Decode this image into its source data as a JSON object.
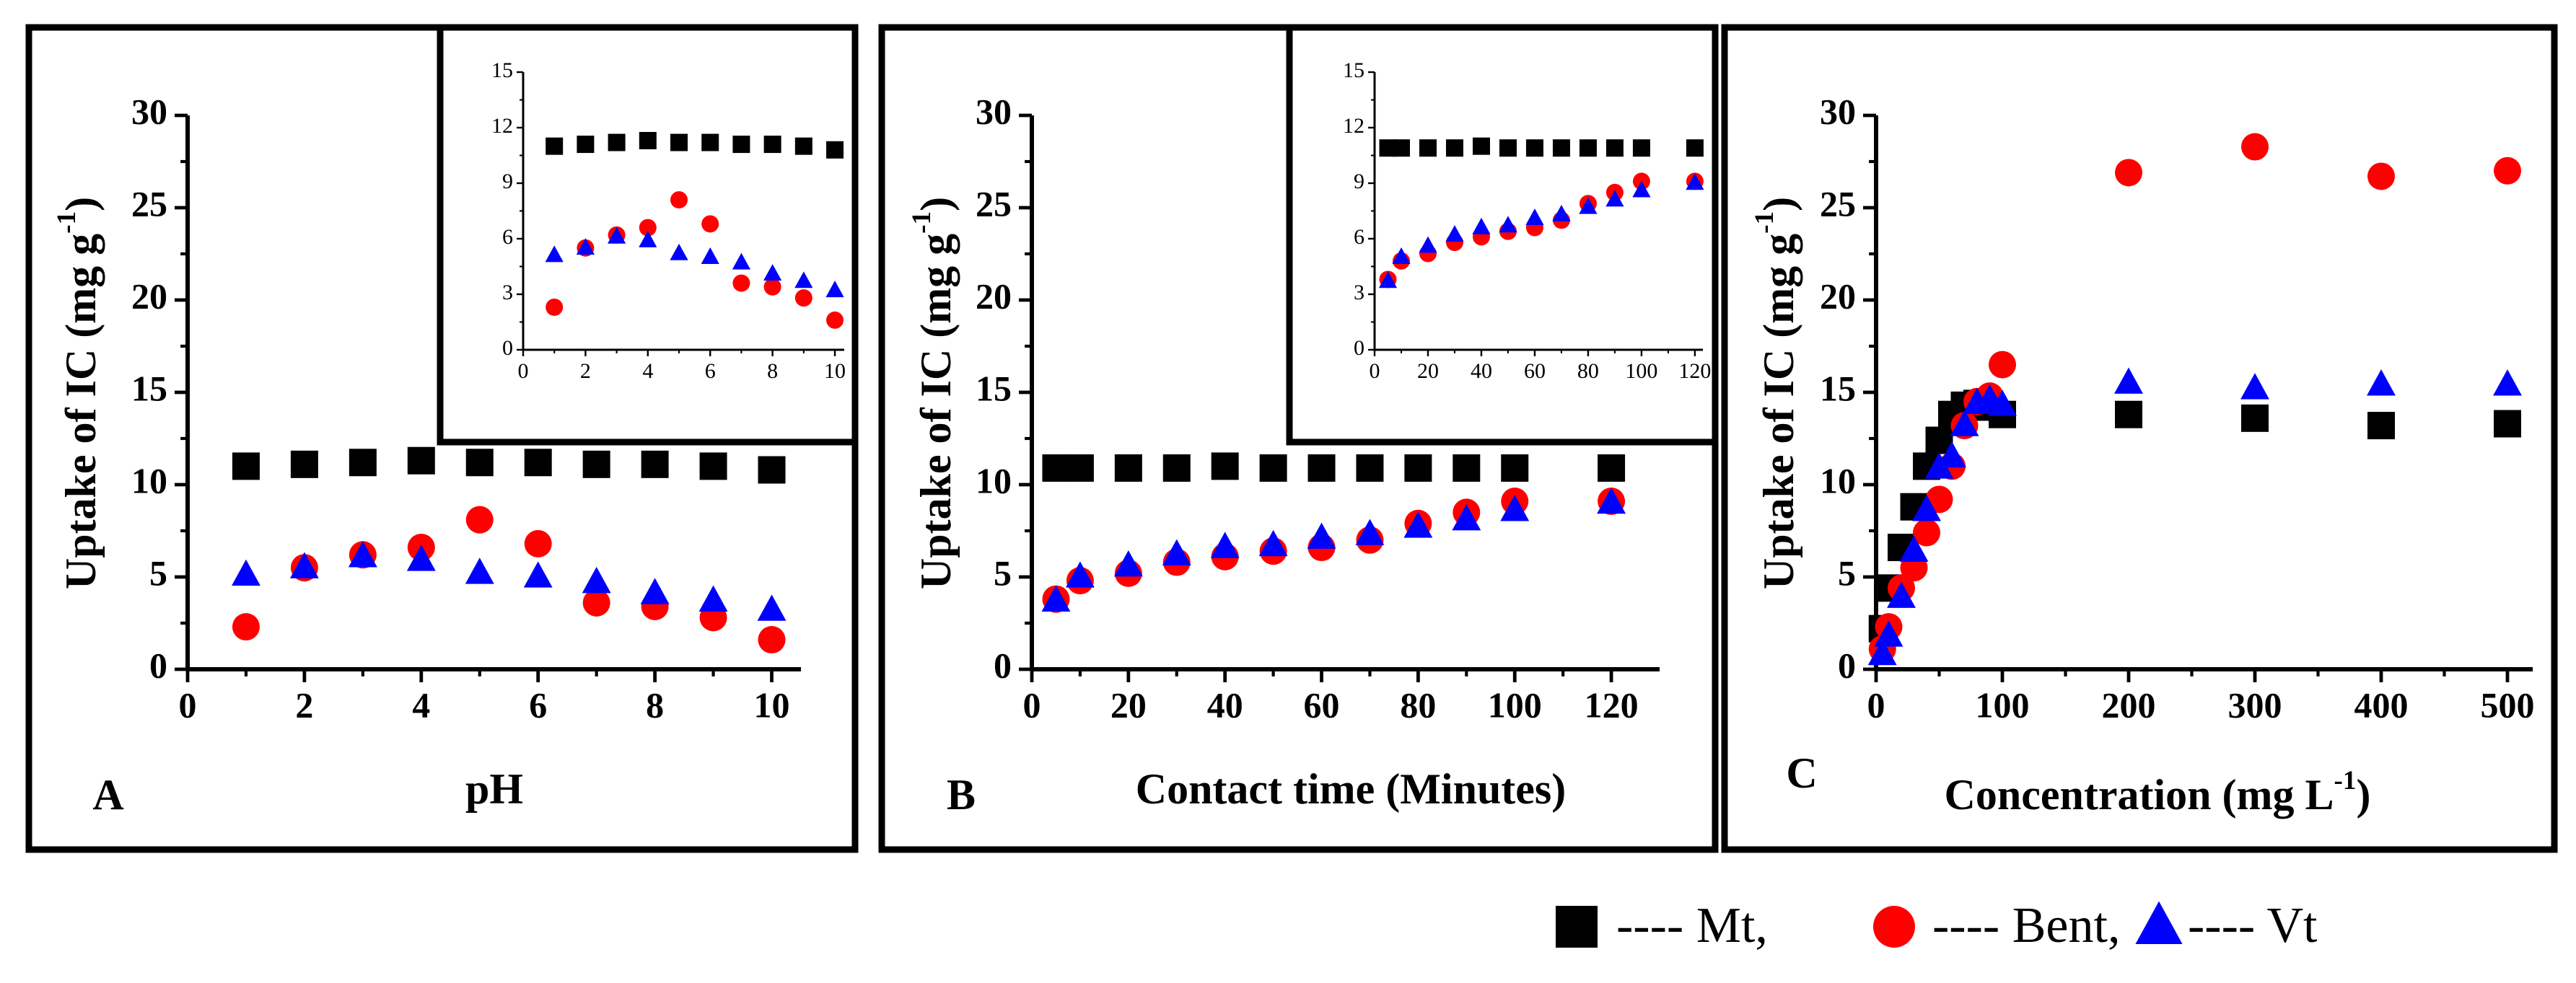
{
  "colors": {
    "mt": "#000000",
    "bent": "#ff0000",
    "vt": "#0000ff"
  },
  "legend": [
    {
      "marker": "square",
      "label": "---- Mt,",
      "series": "mt"
    },
    {
      "marker": "circle",
      "label": "---- Bent,",
      "series": "bent"
    },
    {
      "marker": "triangle",
      "label": "---- Vt",
      "series": "vt"
    }
  ],
  "chart_data": [
    {
      "id": "A",
      "type": "scatter",
      "panel_label": "A",
      "xlabel": "pH",
      "ylabel": "Uptake of IC (mg g",
      "ylabel_sup": "-1",
      "ylabel_close": ")",
      "xlim": [
        0,
        10.5
      ],
      "ylim": [
        0,
        30
      ],
      "xticks": [
        0,
        2,
        4,
        6,
        8,
        10
      ],
      "yticks": [
        0,
        5,
        10,
        15,
        20,
        25,
        30
      ],
      "series": [
        {
          "name": "Mt",
          "key": "mt",
          "marker": "square",
          "x": [
            1,
            2,
            3,
            4,
            5,
            6,
            7,
            8,
            9,
            10
          ],
          "y": [
            11.0,
            11.1,
            11.2,
            11.3,
            11.2,
            11.2,
            11.1,
            11.1,
            11.0,
            10.8
          ]
        },
        {
          "name": "Bent",
          "key": "bent",
          "marker": "circle",
          "x": [
            1,
            2,
            3,
            4,
            5,
            6,
            7,
            8,
            9,
            10
          ],
          "y": [
            2.3,
            5.5,
            6.2,
            6.6,
            8.1,
            6.8,
            3.6,
            3.4,
            2.8,
            1.6
          ]
        },
        {
          "name": "Vt",
          "key": "vt",
          "marker": "triangle",
          "x": [
            1,
            2,
            3,
            4,
            5,
            6,
            7,
            8,
            9,
            10
          ],
          "y": [
            5.1,
            5.5,
            6.1,
            5.9,
            5.2,
            5.0,
            4.7,
            4.1,
            3.7,
            3.2
          ]
        }
      ],
      "inset": {
        "xlim": [
          0,
          10.3
        ],
        "ylim": [
          0,
          15
        ],
        "xticks": [
          0,
          2,
          4,
          6,
          8,
          10
        ],
        "yticks": [
          0,
          3,
          6,
          9,
          12,
          15
        ]
      }
    },
    {
      "id": "B",
      "type": "scatter",
      "panel_label": "B",
      "xlabel": "Contact time (Minutes)",
      "ylabel": "Uptake of IC (mg g",
      "ylabel_sup": "-1",
      "ylabel_close": ")",
      "xlim": [
        0,
        130
      ],
      "ylim": [
        0,
        30
      ],
      "xticks": [
        0,
        20,
        40,
        60,
        80,
        100,
        120
      ],
      "yticks": [
        0,
        5,
        10,
        15,
        20,
        25,
        30
      ],
      "series": [
        {
          "name": "Mt",
          "key": "mt",
          "marker": "square",
          "x": [
            5,
            10,
            20,
            30,
            40,
            50,
            60,
            70,
            80,
            90,
            100,
            120
          ],
          "y": [
            10.9,
            10.9,
            10.9,
            10.9,
            11.0,
            10.9,
            10.9,
            10.9,
            10.9,
            10.9,
            10.9,
            10.9
          ]
        },
        {
          "name": "Bent",
          "key": "bent",
          "marker": "circle",
          "x": [
            5,
            10,
            20,
            30,
            40,
            50,
            60,
            70,
            80,
            90,
            100,
            120
          ],
          "y": [
            3.8,
            4.8,
            5.2,
            5.8,
            6.1,
            6.4,
            6.6,
            7.0,
            7.9,
            8.5,
            9.1,
            9.1
          ]
        },
        {
          "name": "Vt",
          "key": "vt",
          "marker": "triangle",
          "x": [
            5,
            10,
            20,
            30,
            40,
            50,
            60,
            70,
            80,
            90,
            100,
            120
          ],
          "y": [
            3.7,
            5.0,
            5.6,
            6.2,
            6.6,
            6.7,
            7.1,
            7.3,
            7.7,
            8.1,
            8.6,
            9.0
          ]
        }
      ],
      "inset": {
        "xlim": [
          0,
          123
        ],
        "ylim": [
          0,
          15
        ],
        "xticks": [
          0,
          20,
          40,
          60,
          80,
          100,
          120
        ],
        "yticks": [
          0,
          3,
          6,
          9,
          12,
          15
        ]
      }
    },
    {
      "id": "C",
      "type": "scatter",
      "panel_label": "C",
      "xlabel": "Concentration (mg L",
      "xlabel_sup": "-1",
      "xlabel_close": ")",
      "ylabel": "Uptake of IC (mg g",
      "ylabel_sup": "-1",
      "ylabel_close": ")",
      "xlim": [
        0,
        520
      ],
      "ylim": [
        0,
        30
      ],
      "xticks": [
        0,
        100,
        200,
        300,
        400,
        500
      ],
      "yticks": [
        0,
        5,
        10,
        15,
        20,
        25,
        30
      ],
      "series": [
        {
          "name": "Mt",
          "key": "mt",
          "marker": "square",
          "x": [
            5,
            10,
            20,
            30,
            40,
            50,
            60,
            70,
            80,
            90,
            100,
            200,
            300,
            400,
            500
          ],
          "y": [
            2.2,
            4.4,
            6.6,
            8.8,
            11.0,
            12.4,
            13.8,
            14.3,
            14.4,
            14.2,
            13.8,
            13.8,
            13.6,
            13.2,
            13.3
          ]
        },
        {
          "name": "Bent",
          "key": "bent",
          "marker": "circle",
          "x": [
            5,
            10,
            20,
            30,
            40,
            50,
            60,
            70,
            80,
            90,
            100,
            200,
            300,
            400,
            500
          ],
          "y": [
            1.1,
            2.3,
            4.4,
            5.5,
            7.4,
            9.2,
            11.0,
            13.2,
            14.5,
            14.8,
            16.5,
            26.9,
            28.3,
            26.7,
            27.0
          ]
        },
        {
          "name": "Vt",
          "key": "vt",
          "marker": "triangle",
          "x": [
            5,
            10,
            20,
            30,
            40,
            50,
            60,
            70,
            80,
            90,
            100,
            200,
            300,
            400,
            500
          ],
          "y": [
            0.8,
            1.8,
            3.9,
            6.4,
            8.6,
            10.9,
            11.5,
            13.2,
            14.4,
            14.6,
            14.3,
            15.5,
            15.2,
            15.4,
            15.4
          ]
        }
      ]
    }
  ]
}
